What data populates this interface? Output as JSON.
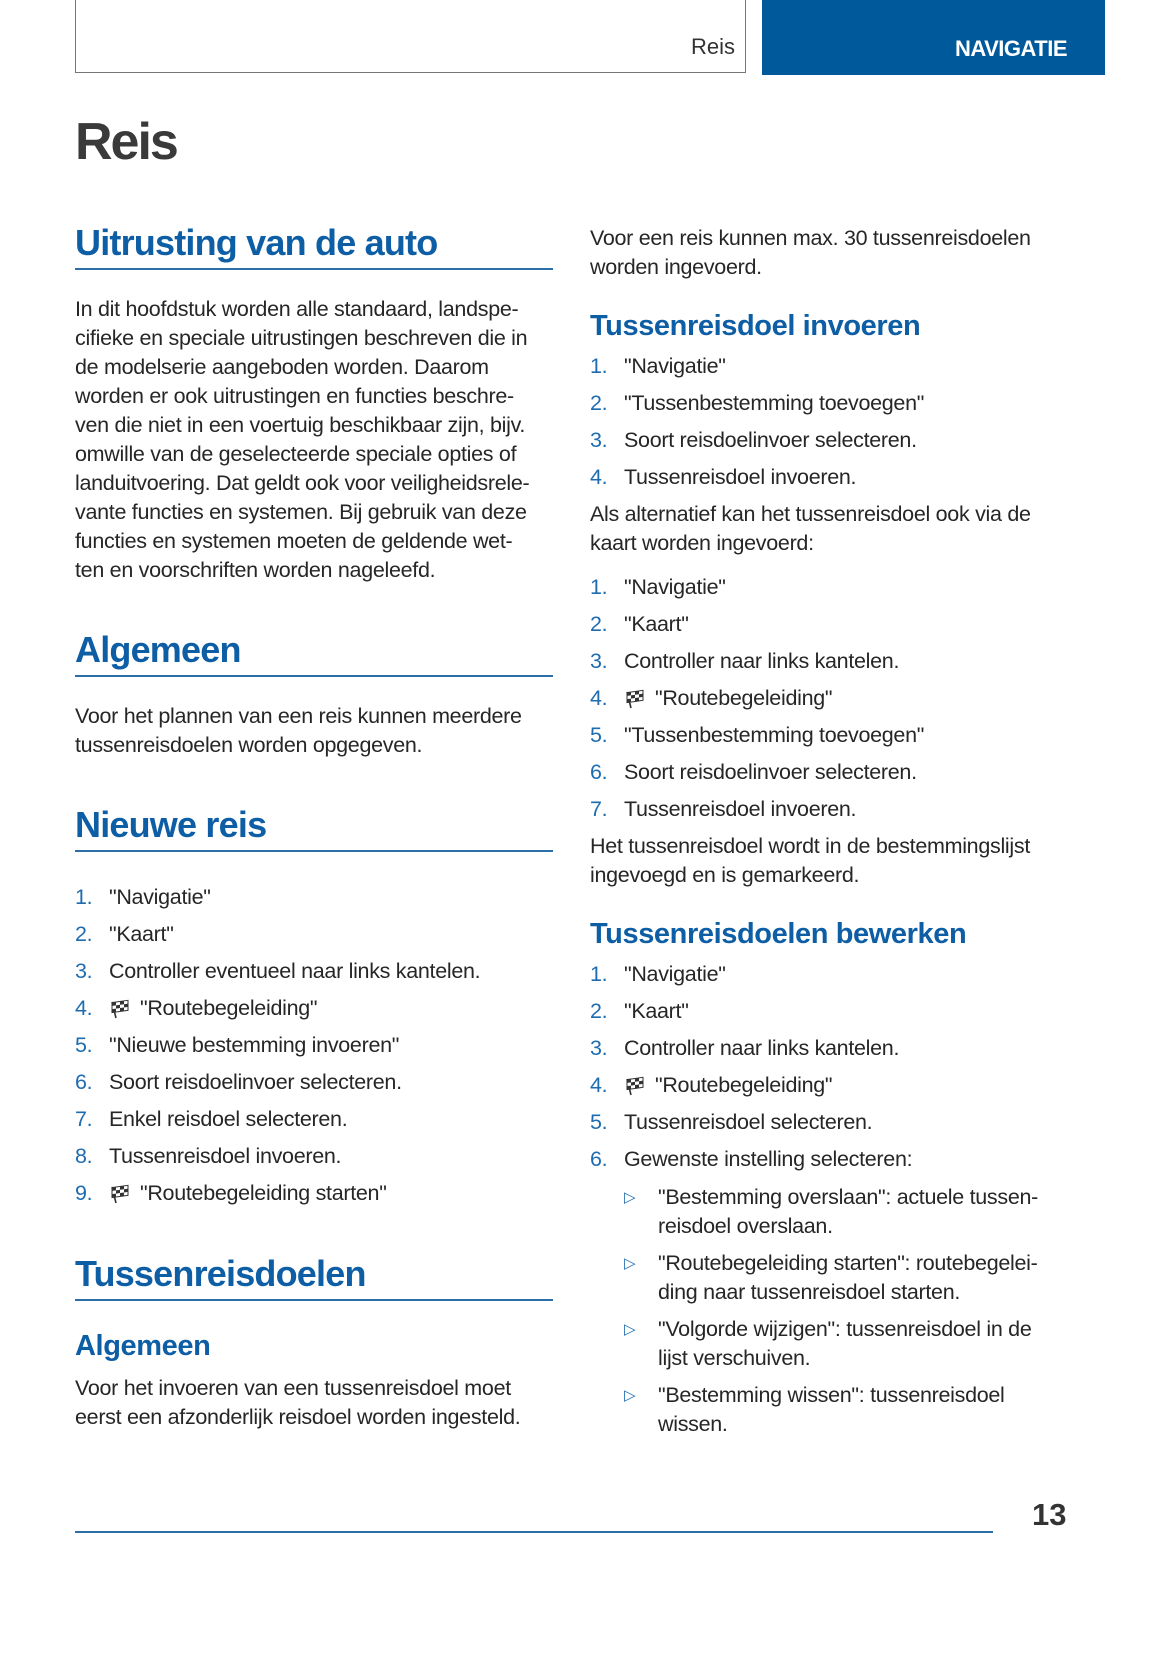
{
  "header": {
    "section": "Reis",
    "chapter_tab": "NAVIGATIE",
    "accent_color": "#00599a"
  },
  "title": "Reis",
  "left": {
    "s1": {
      "heading": "Uitrusting van de auto",
      "para": [
        "In dit hoofdstuk worden alle standaard, landspe-",
        "cifieke en speciale uitrustingen beschreven die in",
        "de modelserie aangeboden worden. Daarom",
        "worden er ook uitrustingen en functies beschre-",
        "ven die niet in een voertuig beschikbaar zijn, bijv.",
        "omwille van de geselecteerde speciale opties of",
        "landuitvoering. Dat geldt ook voor veiligheidsrele-",
        "vante functies en systemen. Bij gebruik van deze",
        "functies en systemen moeten de geldende wet-",
        "ten en voorschriften worden nageleefd."
      ]
    },
    "s2": {
      "heading": "Algemeen",
      "para": [
        "Voor het plannen van een reis kunnen meerdere",
        "tussenreisdoelen worden opgegeven."
      ]
    },
    "s3": {
      "heading": "Nieuwe reis",
      "steps": [
        {
          "n": "1.",
          "text": "\"Navigatie\""
        },
        {
          "n": "2.",
          "text": "\"Kaart\""
        },
        {
          "n": "3.",
          "text": "Controller eventueel naar links kantelen."
        },
        {
          "n": "4.",
          "text": "\"Routebegeleiding\"",
          "icon": "checkered-flag"
        },
        {
          "n": "5.",
          "text": "\"Nieuwe bestemming invoeren\""
        },
        {
          "n": "6.",
          "text": "Soort reisdoelinvoer selecteren."
        },
        {
          "n": "7.",
          "text": "Enkel reisdoel selecteren."
        },
        {
          "n": "8.",
          "text": "Tussenreisdoel invoeren."
        },
        {
          "n": "9.",
          "text": "\"Routebegeleiding starten\"",
          "icon": "checkered-flag"
        }
      ]
    },
    "s4": {
      "heading": "Tussenreisdoelen",
      "sub": "Algemeen",
      "para": [
        "Voor het invoeren van een tussenreisdoel moet",
        "eerst een afzonderlijk reisdoel worden ingesteld."
      ]
    }
  },
  "right": {
    "intro": [
      "Voor een reis kunnen max. 30 tussenreisdoelen",
      "worden ingevoerd."
    ],
    "r1": {
      "heading": "Tussenreisdoel invoeren",
      "steps": [
        {
          "n": "1.",
          "text": "\"Navigatie\""
        },
        {
          "n": "2.",
          "text": "\"Tussenbestemming toevoegen\""
        },
        {
          "n": "3.",
          "text": "Soort reisdoelinvoer selecteren."
        },
        {
          "n": "4.",
          "text": "Tussenreisdoel invoeren."
        }
      ],
      "alt": [
        "Als alternatief kan het tussenreisdoel ook via de",
        "kaart worden ingevoerd:"
      ],
      "steps2": [
        {
          "n": "1.",
          "text": "\"Navigatie\""
        },
        {
          "n": "2.",
          "text": "\"Kaart\""
        },
        {
          "n": "3.",
          "text": "Controller naar links kantelen."
        },
        {
          "n": "4.",
          "text": "\"Routebegeleiding\"",
          "icon": "checkered-flag"
        },
        {
          "n": "5.",
          "text": "\"Tussenbestemming toevoegen\""
        },
        {
          "n": "6.",
          "text": "Soort reisdoelinvoer selecteren."
        },
        {
          "n": "7.",
          "text": "Tussenreisdoel invoeren."
        }
      ],
      "note": [
        "Het tussenreisdoel wordt in de bestemmingslijst",
        "ingevoegd en is gemarkeerd."
      ]
    },
    "r2": {
      "heading": "Tussenreisdoelen bewerken",
      "steps": [
        {
          "n": "1.",
          "text": "\"Navigatie\""
        },
        {
          "n": "2.",
          "text": "\"Kaart\""
        },
        {
          "n": "3.",
          "text": "Controller naar links kantelen."
        },
        {
          "n": "4.",
          "text": "\"Routebegeleiding\"",
          "icon": "checkered-flag"
        },
        {
          "n": "5.",
          "text": "Tussenreisdoel selecteren."
        },
        {
          "n": "6.",
          "text": "Gewenste instelling selecteren:"
        }
      ],
      "options": [
        [
          "\"Bestemming overslaan\": actuele tussen-",
          "reisdoel overslaan."
        ],
        [
          "\"Routebegeleiding starten\": routebegelei-",
          "ding naar tussenreisdoel starten."
        ],
        [
          "\"Volgorde wijzigen\": tussenreisdoel in de",
          "lijst verschuiven."
        ],
        [
          "\"Bestemming wissen\": tussenreisdoel",
          "wissen."
        ]
      ]
    }
  },
  "footer": {
    "page_number": "13"
  }
}
